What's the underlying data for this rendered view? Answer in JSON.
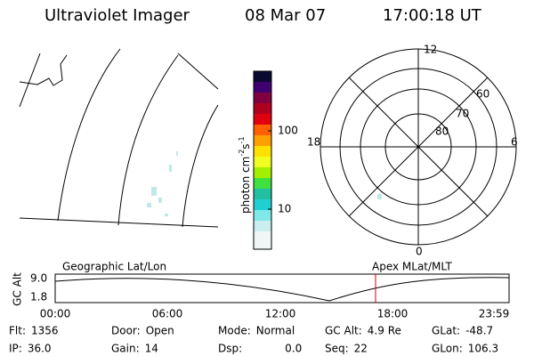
{
  "header": {
    "title": "Ultraviolet Imager",
    "date": "08 Mar 07",
    "time": "17:00:18 UT"
  },
  "colorbar": {
    "unit": "photon cm",
    "unit_exp1": "-2",
    "unit_mid": "s",
    "unit_exp2": "-1",
    "ticks": [
      "100",
      "10"
    ]
  },
  "polar": {
    "labels": {
      "top": "12",
      "left": "18",
      "right": "6",
      "bottom": "0"
    },
    "latitudes": [
      "60",
      "70",
      "80"
    ]
  },
  "orbit": {
    "left_label": "Geographic Lat/Lon",
    "right_label": "Apex MLat/MLT",
    "axis_label": "GC Alt",
    "yticks": [
      "9.0",
      "1.8"
    ],
    "xticks": [
      "00:00",
      "06:00",
      "12:00",
      "18:00",
      "23:59"
    ]
  },
  "info": {
    "rows": [
      [
        [
          "Flt:",
          "1356"
        ],
        [
          "Door:",
          "Open"
        ],
        [
          "Mode:",
          "Normal"
        ],
        [
          "GC Alt:",
          "4.9 Re"
        ],
        [
          "GLat:",
          "-48.7"
        ]
      ],
      [
        [
          "IP:",
          "36.0"
        ],
        [
          "Gain:",
          "14"
        ],
        [
          "Dsp:",
          "0.0"
        ],
        [
          "Seq:",
          "22"
        ],
        [
          "GLon:",
          "106.3"
        ]
      ]
    ]
  }
}
